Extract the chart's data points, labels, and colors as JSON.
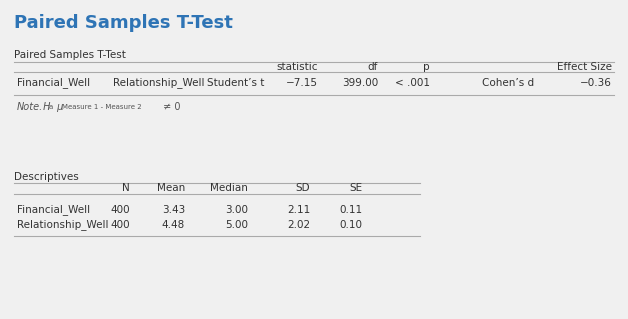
{
  "title": "Paired Samples T-Test",
  "title_color": "#2E74B5",
  "bg_color": "#F0F0F0",
  "t_table_label": "Paired Samples T-Test",
  "t_headers": [
    "",
    "",
    "",
    "statistic",
    "df",
    "p",
    "",
    "Effect Size"
  ],
  "t_row": [
    "Financial_Well",
    "Relationship_Well",
    "Student’s t",
    "−7.15",
    "399.00",
    "< .001",
    "Cohen’s d",
    "−0.36"
  ],
  "d_table_label": "Descriptives",
  "d_headers": [
    "",
    "N",
    "Mean",
    "Median",
    "SD",
    "SE"
  ],
  "d_rows": [
    [
      "Financial_Well",
      "400",
      "3.43",
      "3.00",
      "2.11",
      "0.11"
    ],
    [
      "Relationship_Well",
      "400",
      "4.48",
      "5.00",
      "2.02",
      "0.10"
    ]
  ],
  "line_color": "#AAAAAA",
  "text_color": "#333333",
  "note_color": "#555555"
}
